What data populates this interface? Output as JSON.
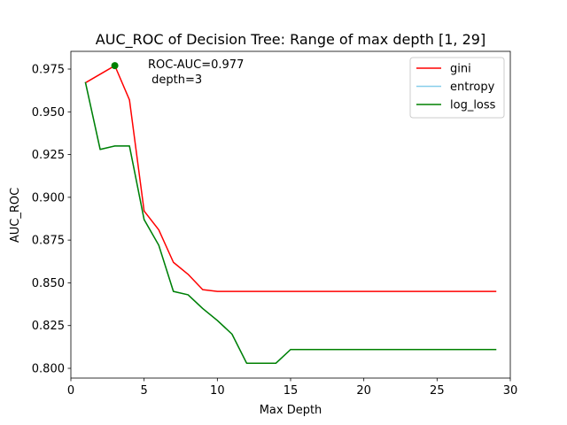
{
  "chart_data": {
    "type": "line",
    "title": "AUC_ROC of Decision Tree: Range of max depth [1, 29]",
    "xlabel": "Max Depth",
    "ylabel": "AUC_ROC",
    "xlim": [
      0,
      30
    ],
    "ylim": [
      0.8,
      0.977
    ],
    "xticks": [
      0,
      5,
      10,
      15,
      20,
      25,
      30
    ],
    "yticks": [
      0.8,
      0.825,
      0.85,
      0.875,
      0.9,
      0.925,
      0.95,
      0.975
    ],
    "ytick_labels": [
      "0.800",
      "0.825",
      "0.850",
      "0.875",
      "0.900",
      "0.925",
      "0.950",
      "0.975"
    ],
    "grid": false,
    "legend_position": "top-right",
    "series": [
      {
        "name": "gini",
        "color": "#ff0000",
        "x": [
          1,
          2,
          3,
          4,
          5,
          6,
          7,
          8,
          9,
          10,
          11,
          12,
          13,
          14,
          15,
          16,
          17,
          18,
          19,
          20,
          21,
          22,
          23,
          24,
          25,
          26,
          27,
          28,
          29
        ],
        "y": [
          0.967,
          0.972,
          0.977,
          0.957,
          0.892,
          0.881,
          0.862,
          0.855,
          0.846,
          0.845,
          0.845,
          0.845,
          0.845,
          0.845,
          0.845,
          0.845,
          0.845,
          0.845,
          0.845,
          0.845,
          0.845,
          0.845,
          0.845,
          0.845,
          0.845,
          0.845,
          0.845,
          0.845,
          0.845
        ]
      },
      {
        "name": "entropy",
        "color": "#87ceeb",
        "x": [
          1,
          2,
          3,
          4,
          5,
          6,
          7,
          8,
          9,
          10,
          11,
          12,
          13,
          14,
          15,
          16,
          17,
          18,
          19,
          20,
          21,
          22,
          23,
          24,
          25,
          26,
          27,
          28,
          29
        ],
        "y": [
          0.967,
          0.928,
          0.93,
          0.93,
          0.887,
          0.872,
          0.845,
          0.843,
          0.835,
          0.828,
          0.82,
          0.803,
          0.803,
          0.803,
          0.811,
          0.811,
          0.811,
          0.811,
          0.811,
          0.811,
          0.811,
          0.811,
          0.811,
          0.811,
          0.811,
          0.811,
          0.811,
          0.811,
          0.811
        ]
      },
      {
        "name": "log_loss",
        "color": "#008000",
        "x": [
          1,
          2,
          3,
          4,
          5,
          6,
          7,
          8,
          9,
          10,
          11,
          12,
          13,
          14,
          15,
          16,
          17,
          18,
          19,
          20,
          21,
          22,
          23,
          24,
          25,
          26,
          27,
          28,
          29
        ],
        "y": [
          0.967,
          0.928,
          0.93,
          0.93,
          0.887,
          0.872,
          0.845,
          0.843,
          0.835,
          0.828,
          0.82,
          0.803,
          0.803,
          0.803,
          0.811,
          0.811,
          0.811,
          0.811,
          0.811,
          0.811,
          0.811,
          0.811,
          0.811,
          0.811,
          0.811,
          0.811,
          0.811,
          0.811,
          0.811
        ]
      }
    ],
    "marker": {
      "x": 3,
      "y": 0.977,
      "color": "#008000"
    },
    "annotation": {
      "line1": "ROC-AUC=0.977",
      "line2": " depth=3"
    }
  }
}
